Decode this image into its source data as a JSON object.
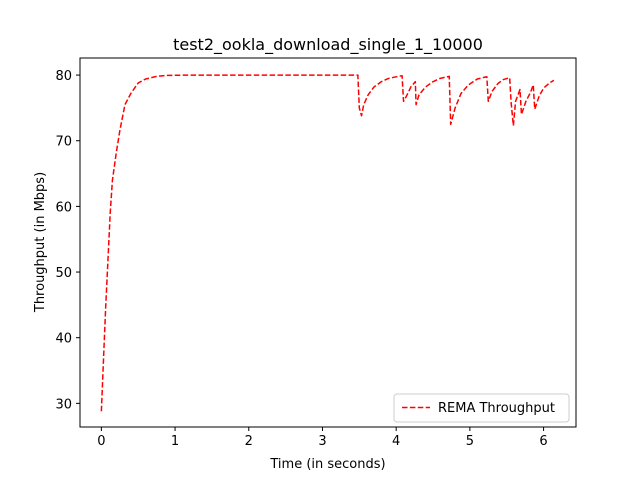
{
  "chart_data": {
    "type": "line",
    "title": "test2_ookla_download_single_1_10000",
    "xlabel": "Time (in seconds)",
    "ylabel": "Throughput (in Mbps)",
    "xlim": [
      -0.29,
      6.44
    ],
    "ylim": [
      26.4,
      82.6
    ],
    "xticks": [
      0,
      1,
      2,
      3,
      4,
      5,
      6
    ],
    "yticks": [
      30,
      40,
      50,
      60,
      70,
      80
    ],
    "grid": false,
    "legend_position": "lower-right",
    "series": [
      {
        "name": "REMA Throughput",
        "color": "#ff0000",
        "style": "dashed",
        "points": [
          [
            0.0,
            28.8
          ],
          [
            0.03,
            37.0
          ],
          [
            0.06,
            45.0
          ],
          [
            0.09,
            52.0
          ],
          [
            0.12,
            59.0
          ],
          [
            0.15,
            64.0
          ],
          [
            0.2,
            68.0
          ],
          [
            0.25,
            71.5
          ],
          [
            0.32,
            75.5
          ],
          [
            0.4,
            77.2
          ],
          [
            0.5,
            78.8
          ],
          [
            0.6,
            79.4
          ],
          [
            0.75,
            79.8
          ],
          [
            0.9,
            79.95
          ],
          [
            1.2,
            80.0
          ],
          [
            2.0,
            80.0
          ],
          [
            3.0,
            80.0
          ],
          [
            3.48,
            80.0
          ],
          [
            3.5,
            75.0
          ],
          [
            3.53,
            73.8
          ],
          [
            3.56,
            75.5
          ],
          [
            3.62,
            77.0
          ],
          [
            3.7,
            78.2
          ],
          [
            3.8,
            79.0
          ],
          [
            3.9,
            79.5
          ],
          [
            4.05,
            79.85
          ],
          [
            4.08,
            79.9
          ],
          [
            4.1,
            76.0
          ],
          [
            4.14,
            76.8
          ],
          [
            4.2,
            78.2
          ],
          [
            4.26,
            79.0
          ],
          [
            4.27,
            75.5
          ],
          [
            4.31,
            77.0
          ],
          [
            4.4,
            78.2
          ],
          [
            4.5,
            79.0
          ],
          [
            4.6,
            79.5
          ],
          [
            4.72,
            79.8
          ],
          [
            4.74,
            72.5
          ],
          [
            4.8,
            75.0
          ],
          [
            4.88,
            77.2
          ],
          [
            4.98,
            78.5
          ],
          [
            5.1,
            79.4
          ],
          [
            5.23,
            79.75
          ],
          [
            5.25,
            76.0
          ],
          [
            5.3,
            77.5
          ],
          [
            5.38,
            78.7
          ],
          [
            5.45,
            79.3
          ],
          [
            5.54,
            79.6
          ],
          [
            5.56,
            75.8
          ],
          [
            5.59,
            72.3
          ],
          [
            5.62,
            76.0
          ],
          [
            5.68,
            77.8
          ],
          [
            5.7,
            74.0
          ],
          [
            5.76,
            76.0
          ],
          [
            5.82,
            77.3
          ],
          [
            5.86,
            78.5
          ],
          [
            5.88,
            74.8
          ],
          [
            5.94,
            76.8
          ],
          [
            6.0,
            78.0
          ],
          [
            6.08,
            78.8
          ],
          [
            6.14,
            79.2
          ]
        ]
      }
    ]
  }
}
